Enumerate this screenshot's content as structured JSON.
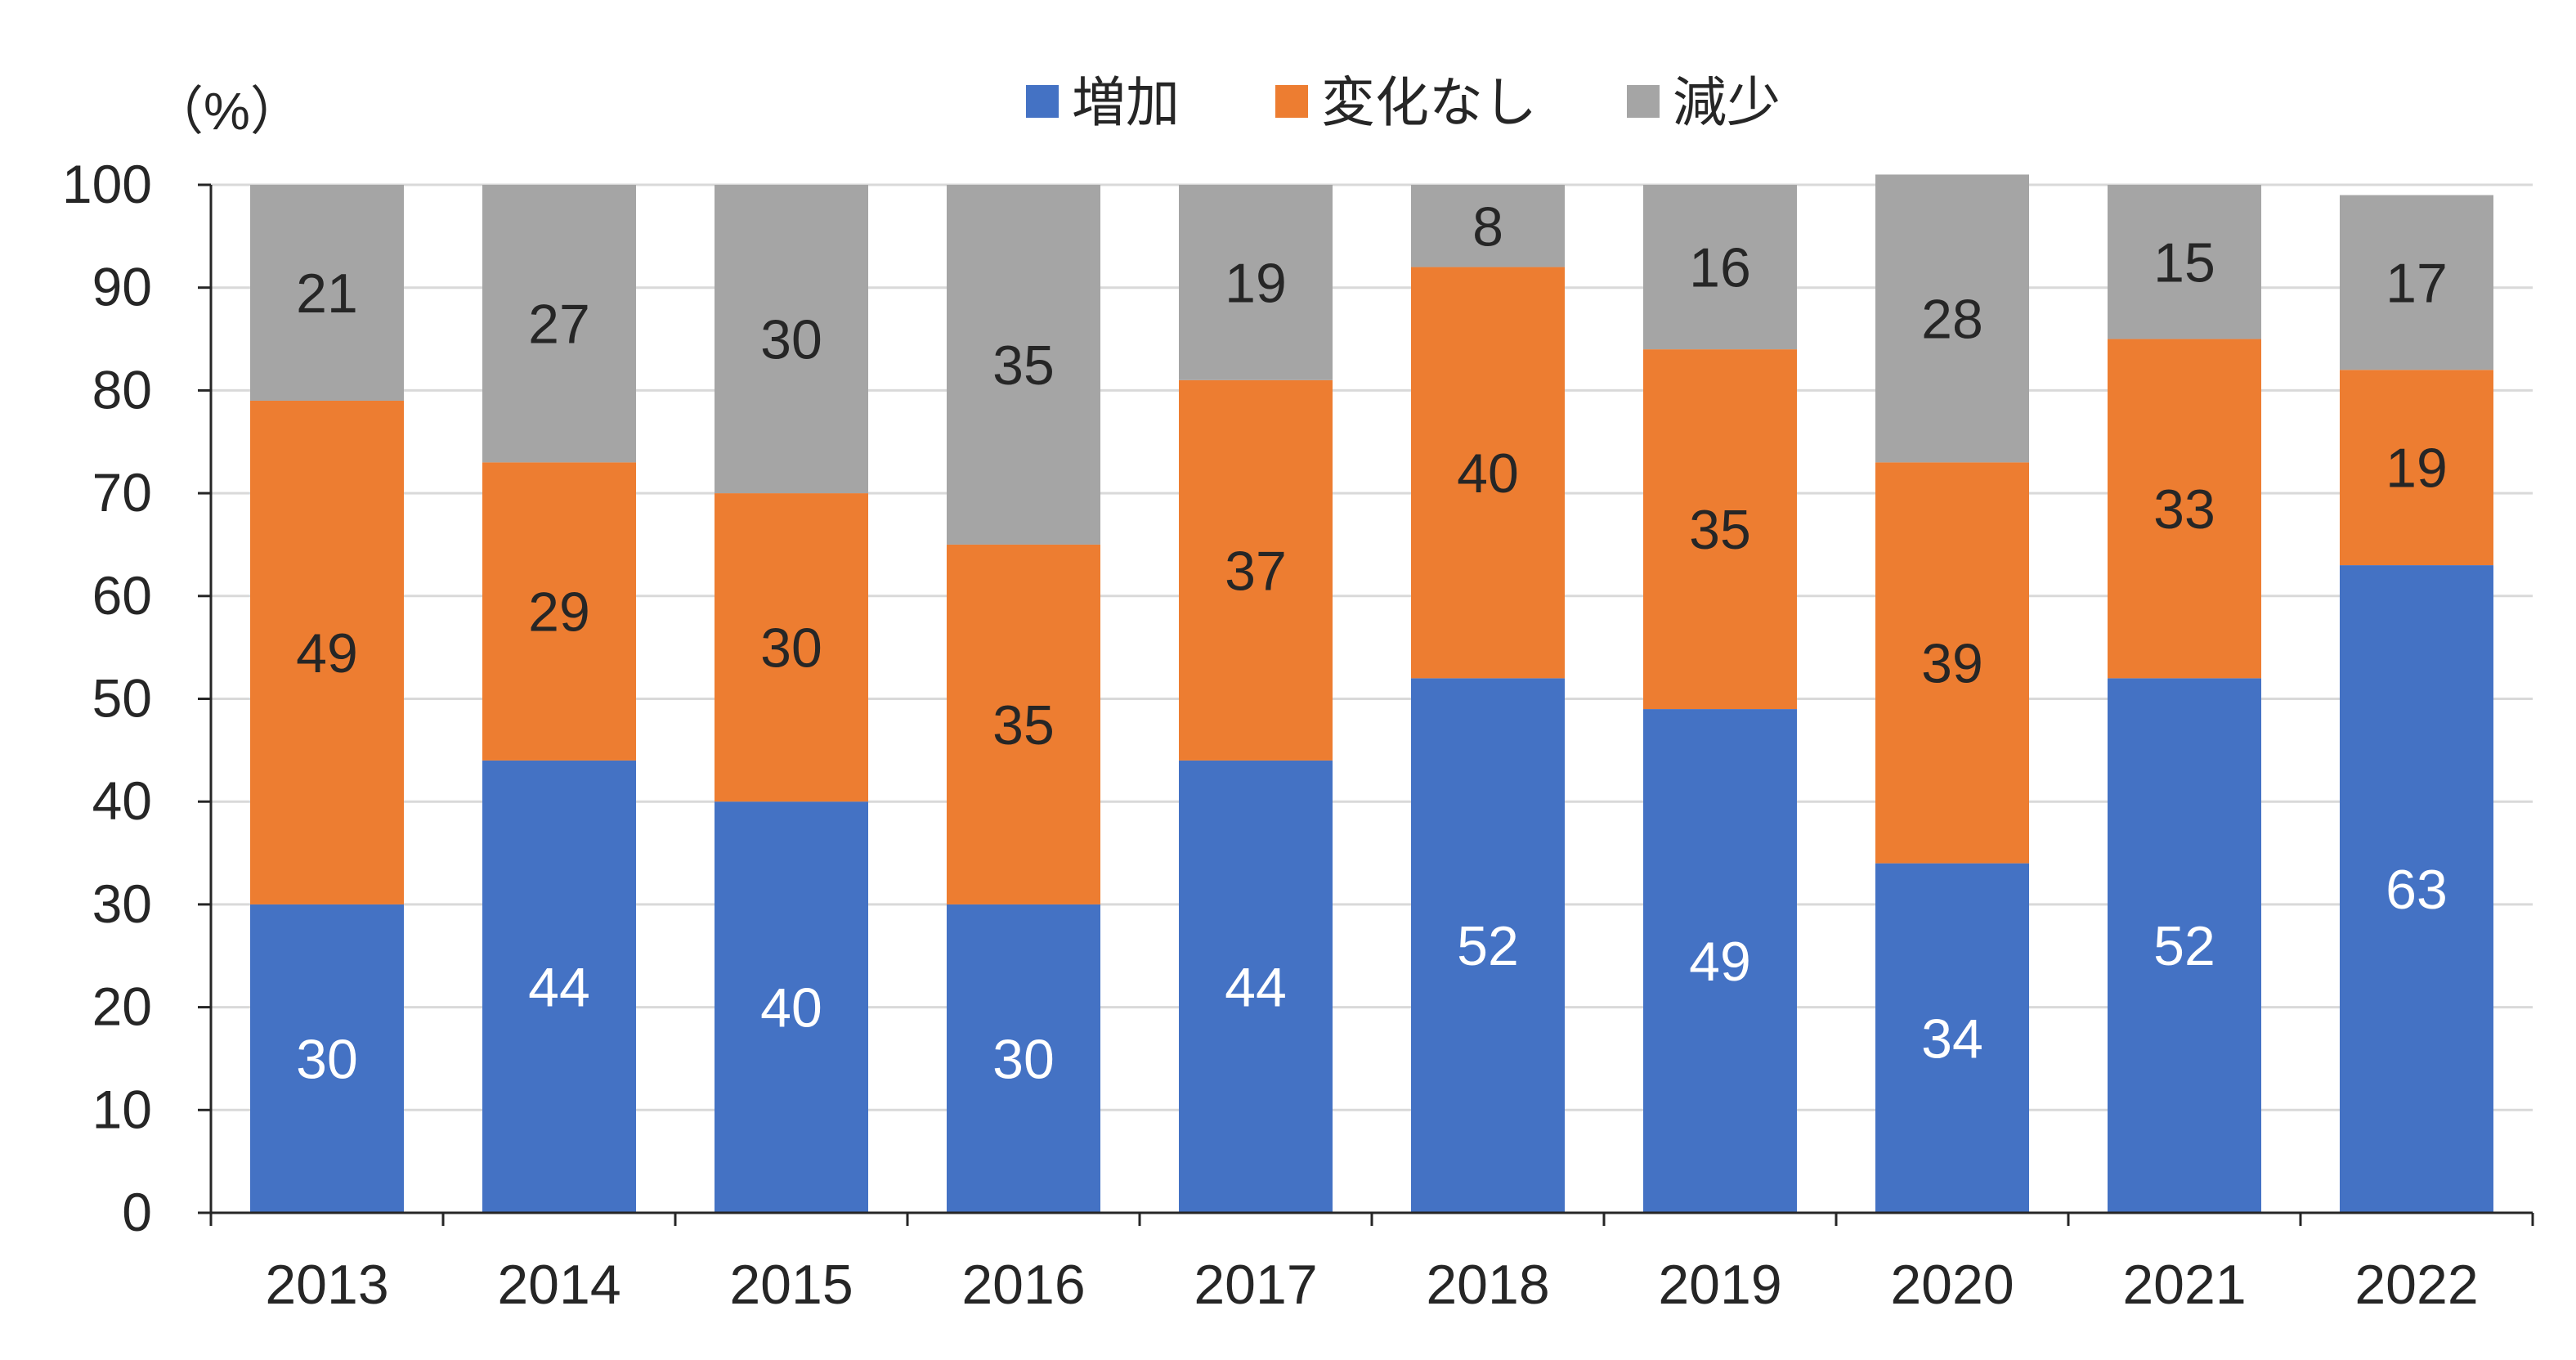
{
  "chart_data": {
    "type": "bar",
    "stacked": true,
    "unit_label": "（%）",
    "categories": [
      "2013",
      "2014",
      "2015",
      "2016",
      "2017",
      "2018",
      "2019",
      "2020",
      "2021",
      "2022"
    ],
    "series": [
      {
        "name": "増加",
        "color": "#4472C4",
        "label_color": "#ffffff",
        "values": [
          30,
          44,
          40,
          30,
          44,
          52,
          49,
          34,
          52,
          63
        ]
      },
      {
        "name": "変化なし",
        "color": "#ED7D31",
        "label_color": "#262626",
        "values": [
          49,
          29,
          30,
          35,
          37,
          40,
          35,
          39,
          33,
          19
        ]
      },
      {
        "name": "減少",
        "color": "#A5A5A5",
        "label_color": "#262626",
        "values": [
          21,
          27,
          30,
          35,
          19,
          8,
          16,
          28,
          15,
          17
        ]
      }
    ],
    "ylim": [
      0,
      100
    ],
    "yticks": [
      0,
      10,
      20,
      30,
      40,
      50,
      60,
      70,
      80,
      90,
      100
    ],
    "grid": true,
    "legend_position": "top"
  }
}
